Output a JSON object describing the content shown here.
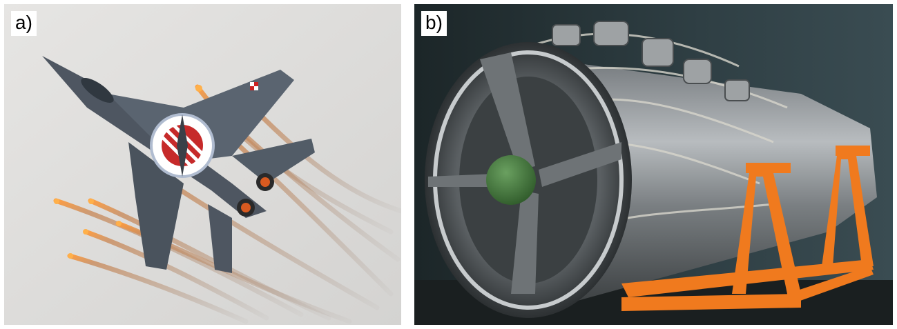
{
  "panels": [
    {
      "label": "a)",
      "icon": "jet-fighter-photo",
      "colors": {
        "sky": "#dcdbd9",
        "airframe": "#4e5661",
        "flare": "#ff8a2a",
        "smoke": "#8a7a70"
      }
    },
    {
      "label": "b)",
      "icon": "jet-engine-photo",
      "colors": {
        "hangar": "#2c3a3e",
        "metal": "#8a8f92",
        "stand": "#f07a1e",
        "nosecone": "#3f6f3a"
      }
    }
  ]
}
